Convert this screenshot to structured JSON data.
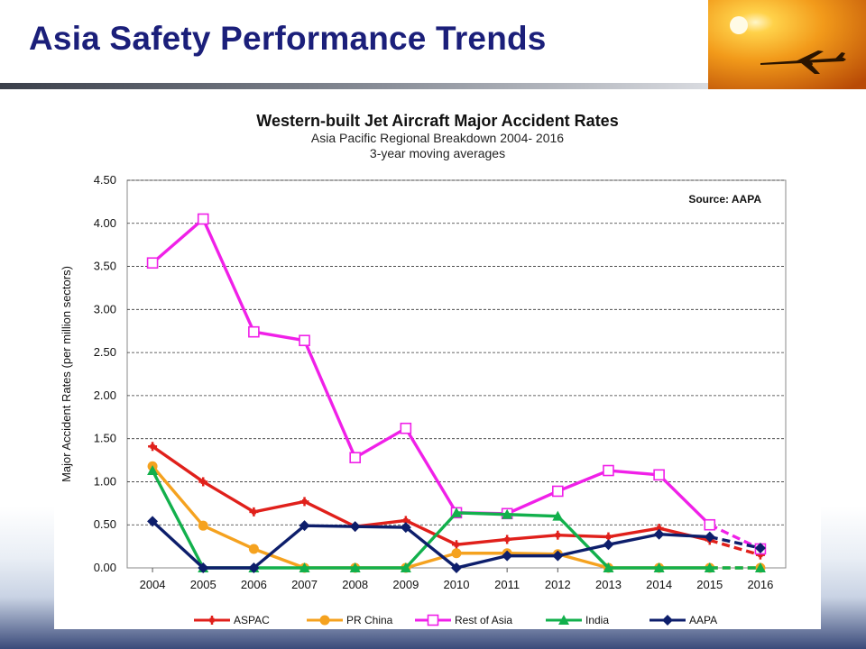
{
  "slide": {
    "title": "Asia Safety Performance Trends"
  },
  "chart_data": {
    "type": "line",
    "title": "Western-built Jet Aircraft Major Accident Rates",
    "subtitle": "Asia Pacific Regional Breakdown 2004- 2016",
    "subtitle2": "3-year moving averages",
    "source_note": "Source: AAPA",
    "xlabel": "",
    "ylabel": "Major Accident Rates (per million sectors)",
    "x": [
      "2004",
      "2005",
      "2006",
      "2007",
      "2008",
      "2009",
      "2010",
      "2011",
      "2012",
      "2013",
      "2014",
      "2015",
      "2016"
    ],
    "ylim": [
      0,
      4.5
    ],
    "yticks": [
      "0.00",
      "0.50",
      "1.00",
      "1.50",
      "2.00",
      "2.50",
      "3.00",
      "3.50",
      "4.00",
      "4.50"
    ],
    "grid": true,
    "legend_position": "bottom",
    "projected_from_index": 11,
    "series": [
      {
        "name": "ASPAC",
        "color": "#e0201b",
        "marker": "cross",
        "values": [
          1.41,
          1.0,
          0.65,
          0.77,
          0.48,
          0.55,
          0.27,
          0.33,
          0.38,
          0.36,
          0.46,
          0.32,
          0.15
        ]
      },
      {
        "name": "PR China",
        "color": "#f5a21f",
        "marker": "circle",
        "values": [
          1.18,
          0.49,
          0.22,
          0.0,
          0.0,
          0.0,
          0.17,
          0.17,
          0.16,
          0.0,
          0.0,
          0.0,
          0.0
        ]
      },
      {
        "name": "Rest of Asia",
        "color": "#f020e8",
        "marker": "square-open",
        "values": [
          3.54,
          4.05,
          2.74,
          2.64,
          1.28,
          1.62,
          0.64,
          0.63,
          0.89,
          1.13,
          1.08,
          0.5,
          0.22
        ]
      },
      {
        "name": "India",
        "color": "#12b04c",
        "marker": "triangle",
        "values": [
          1.13,
          0.0,
          0.0,
          0.0,
          0.0,
          0.0,
          0.64,
          0.62,
          0.6,
          0.0,
          0.0,
          0.0,
          0.0
        ]
      },
      {
        "name": "AAPA",
        "color": "#0d1e6b",
        "marker": "diamond",
        "values": [
          0.54,
          0.0,
          0.0,
          0.49,
          0.48,
          0.47,
          0.0,
          0.14,
          0.14,
          0.27,
          0.39,
          0.36,
          0.23
        ]
      }
    ]
  }
}
